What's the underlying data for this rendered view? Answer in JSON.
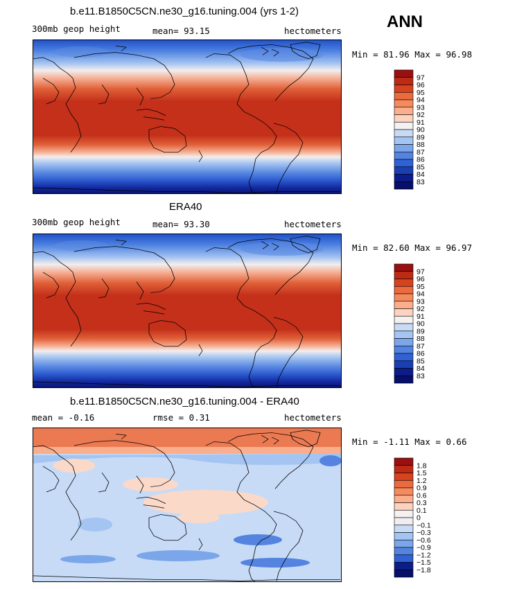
{
  "season": "ANN",
  "panels": [
    {
      "title": "b.e11.B1850C5CN.ne30_g16.tuning.004 (yrs 1-2)",
      "left_label": "300mb geop height",
      "center_label": "mean=  93.15",
      "right_label": "hectometers",
      "minmax": "Min =  81.96 Max =  96.98"
    },
    {
      "title": "ERA40",
      "left_label": "300mb geop height",
      "center_label": "mean=  93.30",
      "right_label": "hectometers",
      "minmax": "Min =  82.60 Max =  96.97"
    },
    {
      "title": "b.e11.B1850C5CN.ne30_g16.tuning.004 - ERA40",
      "left_label": "mean =  -0.16",
      "center_label": "rmse =   0.31",
      "right_label": "hectometers",
      "minmax": "Min =  -1.11 Max =   0.66"
    }
  ],
  "chart_data": [
    {
      "type": "heatmap",
      "title": "b.e11.B1850C5CN.ne30_g16.tuning.004 (yrs 1-2)",
      "variable": "300mb geop height",
      "units": "hectometers",
      "mean": 93.15,
      "min": 81.96,
      "max": 96.98,
      "colorbar_levels": [
        "97",
        "96",
        "95",
        "94",
        "93",
        "92",
        "91",
        "90",
        "89",
        "88",
        "87",
        "86",
        "85",
        "84",
        "83"
      ],
      "colorbar_colors": [
        "#9a0f0f",
        "#bf2a14",
        "#d8431f",
        "#eb6a3f",
        "#f68a5d",
        "#fbae8c",
        "#fdd3bf",
        "#f5f1f0",
        "#c7dbf6",
        "#a4c4f1",
        "#7ba6ea",
        "#5484e0",
        "#2f62d4",
        "#1a3fb2",
        "#0c1c8a",
        "#06106a"
      ]
    },
    {
      "type": "heatmap",
      "title": "ERA40",
      "variable": "300mb geop height",
      "units": "hectometers",
      "mean": 93.3,
      "min": 82.6,
      "max": 96.97,
      "colorbar_levels": [
        "97",
        "96",
        "95",
        "94",
        "93",
        "92",
        "91",
        "90",
        "89",
        "88",
        "87",
        "86",
        "85",
        "84",
        "83"
      ],
      "colorbar_colors": [
        "#9a0f0f",
        "#bf2a14",
        "#d8431f",
        "#eb6a3f",
        "#f68a5d",
        "#fbae8c",
        "#fdd3bf",
        "#f5f1f0",
        "#c7dbf6",
        "#a4c4f1",
        "#7ba6ea",
        "#5484e0",
        "#2f62d4",
        "#1a3fb2",
        "#0c1c8a",
        "#06106a"
      ]
    },
    {
      "type": "heatmap",
      "title": "b.e11.B1850C5CN.ne30_g16.tuning.004 - ERA40",
      "units": "hectometers",
      "mean": -0.16,
      "rmse": 0.31,
      "min": -1.11,
      "max": 0.66,
      "colorbar_levels": [
        "1.8",
        "1.5",
        "1.2",
        "0.9",
        "0.6",
        "0.3",
        "0.1",
        "0",
        "−0.1",
        "−0.3",
        "−0.6",
        "−0.9",
        "−1.2",
        "−1.5",
        "−1.8"
      ],
      "colorbar_colors": [
        "#9a0f0f",
        "#bf2a14",
        "#d8431f",
        "#eb6a3f",
        "#f68a5d",
        "#fbae8c",
        "#fdd3bf",
        "#f5f1f0",
        "#f0eef2",
        "#c7dbf6",
        "#a4c4f1",
        "#7ba6ea",
        "#5484e0",
        "#2f62d4",
        "#0c1c8a",
        "#06106a"
      ]
    }
  ]
}
